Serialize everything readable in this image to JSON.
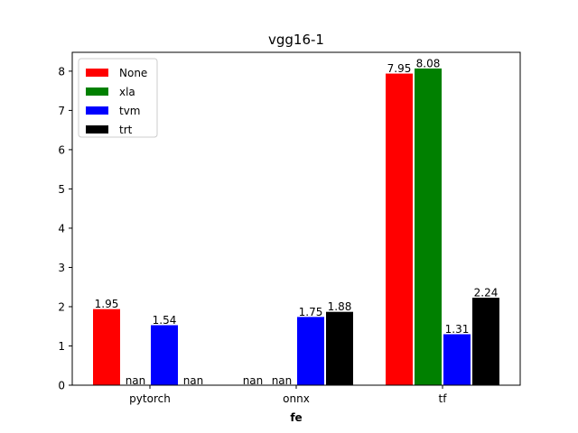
{
  "chart_data": {
    "type": "bar",
    "title": "vgg16-1",
    "xlabel": "fe",
    "ylabel": "",
    "ylim": [
      0,
      8.48
    ],
    "yticks": [
      0,
      1,
      2,
      3,
      4,
      5,
      6,
      7,
      8
    ],
    "categories": [
      "pytorch",
      "onnx",
      "tf"
    ],
    "series": [
      {
        "name": "None",
        "color": "#ff0000",
        "values": [
          1.95,
          null,
          7.95
        ],
        "labels": [
          "1.95",
          "nan",
          "7.95"
        ]
      },
      {
        "name": "xla",
        "color": "#008000",
        "values": [
          null,
          null,
          8.08
        ],
        "labels": [
          "nan",
          "nan",
          "8.08"
        ]
      },
      {
        "name": "tvm",
        "color": "#0000ff",
        "values": [
          1.54,
          1.75,
          1.31
        ],
        "labels": [
          "1.54",
          "1.75",
          "1.31"
        ]
      },
      {
        "name": "trt",
        "color": "#000000",
        "values": [
          null,
          1.88,
          2.24
        ],
        "labels": [
          "nan",
          "1.88",
          "2.24"
        ]
      }
    ],
    "legend": "top-left",
    "grid": false
  }
}
